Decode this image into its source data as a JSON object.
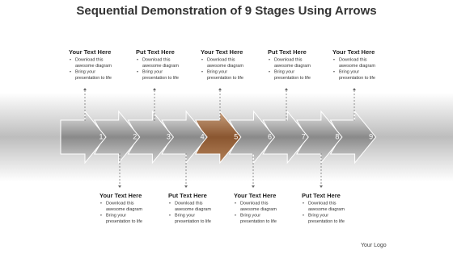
{
  "title": "Sequential Demonstration of 9 Stages Using Arrows",
  "stages": [
    "1",
    "2",
    "3",
    "4",
    "5",
    "6",
    "7",
    "8",
    "9"
  ],
  "top_notes": [
    {
      "heading": "Your Text Here",
      "bullets": [
        [
          "Download this",
          "awesome diagram"
        ],
        [
          "Bring your",
          "presentation to life"
        ]
      ]
    },
    {
      "heading": "Put Text Here",
      "bullets": [
        [
          "Download this",
          "awesome diagram"
        ],
        [
          "Bring your",
          "presentation to life"
        ]
      ]
    },
    {
      "heading": "Your Text Here",
      "bullets": [
        [
          "Download this",
          "awesome diagram"
        ],
        [
          "Bring your",
          "presentation to life"
        ]
      ]
    },
    {
      "heading": "Put Text Here",
      "bullets": [
        [
          "Download this",
          "awesome diagram"
        ],
        [
          "Bring your",
          "presentation to life"
        ]
      ]
    },
    {
      "heading": "Your Text Here",
      "bullets": [
        [
          "Download this",
          "awesome diagram"
        ],
        [
          "Bring your",
          "presentation to life"
        ]
      ]
    }
  ],
  "bottom_notes": [
    {
      "heading": "Your Text Here",
      "bullets": [
        [
          "Download this",
          "awesome diagram"
        ],
        [
          "Bring your",
          "presentation to life"
        ]
      ]
    },
    {
      "heading": "Put Text Here",
      "bullets": [
        [
          "Download this",
          "awesome diagram"
        ],
        [
          "Bring your",
          "presentation to life"
        ]
      ]
    },
    {
      "heading": "Your Text Here",
      "bullets": [
        [
          "Download this",
          "awesome diagram"
        ],
        [
          "Bring your",
          "presentation to life"
        ]
      ]
    },
    {
      "heading": "Put Text Here",
      "bullets": [
        [
          "Download this",
          "awesome diagram"
        ],
        [
          "Bring your",
          "presentation to life"
        ]
      ]
    }
  ],
  "logo": "Your Logo"
}
